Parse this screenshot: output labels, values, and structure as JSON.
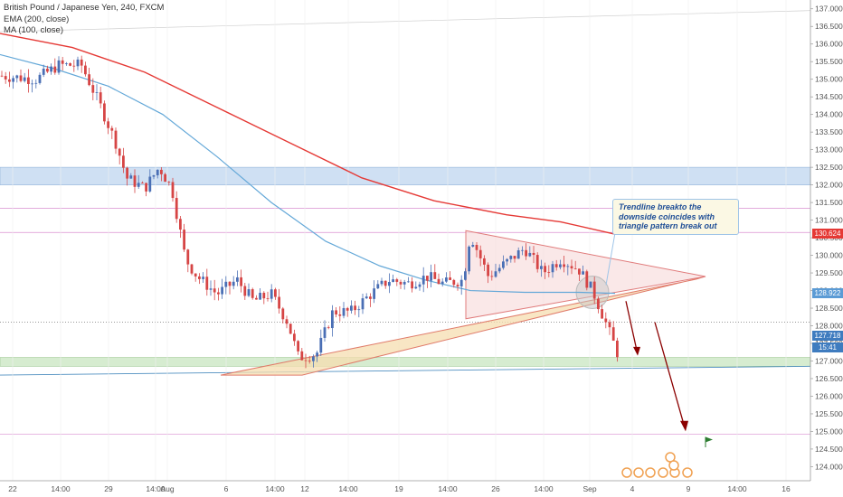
{
  "legend": {
    "symbol": "British Pound / Japanese Yen, 240, FXCM",
    "ema": "EMA (200, close)",
    "ma": "MA (100, close)"
  },
  "annotation": "Trendline breakto the downside coincides with triangle pattern break out",
  "badges": [
    {
      "label": "130.624",
      "price": 130.624,
      "color": "#e53935"
    },
    {
      "label": "128.922",
      "price": 128.922,
      "color": "#5b9bd5"
    },
    {
      "label": "127.718",
      "price": 127.718,
      "color": "#3f7cbf"
    },
    {
      "label": "15:41",
      "price": 127.38,
      "color": "#3f7cbf"
    }
  ],
  "colors": {
    "up": "#4a6fb5",
    "down": "#d64545",
    "ema": "#e53935",
    "ma": "#64a8d8",
    "zone_blue": "#cfe0f3",
    "zone_green": "#d6ecd0",
    "triangle": "#f6ddb0"
  },
  "chart_data": {
    "type": "candlestick",
    "ylim": [
      123.6,
      137.25
    ],
    "ticks_y": [
      "124.000",
      "124.500",
      "125.000",
      "125.500",
      "126.000",
      "126.500",
      "127.000",
      "127.500",
      "128.000",
      "128.500",
      "129.000",
      "129.500",
      "130.000",
      "130.500",
      "131.000",
      "131.500",
      "132.000",
      "132.500",
      "133.000",
      "133.500",
      "134.000",
      "134.500",
      "135.000",
      "135.500",
      "136.000",
      "136.500",
      "137.000"
    ],
    "ticks_x": [
      "22",
      "14:00",
      "29",
      "14:00",
      "Aug",
      "6",
      "14:00",
      "12",
      "14:00",
      "19",
      "14:00",
      "26",
      "14:00",
      "Sep",
      "4",
      "9",
      "14:00",
      "16"
    ],
    "key_levels": {
      "resistance_zone": [
        132.0,
        132.5
      ],
      "support_zone": [
        126.85,
        127.1
      ],
      "level_lines": [
        131.34,
        130.65,
        128.1,
        124.92
      ]
    },
    "triangle_pattern": {
      "upper_start": 130.7,
      "lower_start": 126.6,
      "apex": 129.4
    },
    "current_price": 127.718
  }
}
